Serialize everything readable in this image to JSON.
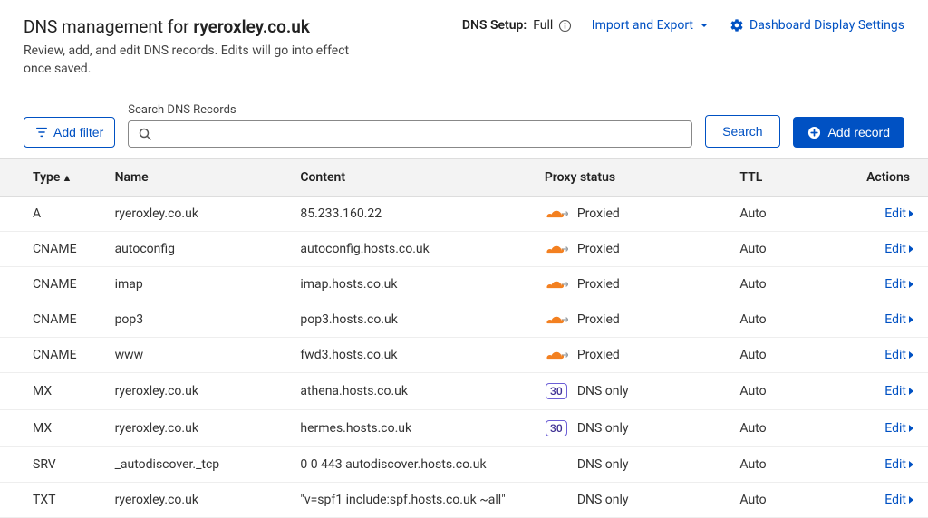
{
  "header": {
    "title_prefix": "DNS management for ",
    "domain": "ryeroxley.co.uk",
    "subtitle": "Review, add, and edit DNS records. Edits will go into effect once saved.",
    "dns_setup_label": "DNS Setup:",
    "dns_setup_value": "Full",
    "import_export": "Import and Export",
    "dashboard_settings": "Dashboard Display Settings"
  },
  "controls": {
    "add_filter": "Add filter",
    "search_label": "Search DNS Records",
    "search_placeholder": "",
    "search_button": "Search",
    "add_record": "Add record"
  },
  "table": {
    "columns": {
      "type": "Type",
      "name": "Name",
      "content": "Content",
      "proxy": "Proxy status",
      "ttl": "TTL",
      "actions": "Actions"
    },
    "edit_label": "Edit",
    "rows": [
      {
        "type": "A",
        "name": "ryeroxley.co.uk",
        "content": "85.233.160.22",
        "proxy": "Proxied",
        "proxy_icon": "cloud",
        "ttl": "Auto"
      },
      {
        "type": "CNAME",
        "name": "autoconfig",
        "content": "autoconfig.hosts.co.uk",
        "proxy": "Proxied",
        "proxy_icon": "cloud",
        "ttl": "Auto"
      },
      {
        "type": "CNAME",
        "name": "imap",
        "content": "imap.hosts.co.uk",
        "proxy": "Proxied",
        "proxy_icon": "cloud",
        "ttl": "Auto"
      },
      {
        "type": "CNAME",
        "name": "pop3",
        "content": "pop3.hosts.co.uk",
        "proxy": "Proxied",
        "proxy_icon": "cloud",
        "ttl": "Auto"
      },
      {
        "type": "CNAME",
        "name": "www",
        "content": "fwd3.hosts.co.uk",
        "proxy": "Proxied",
        "proxy_icon": "cloud",
        "ttl": "Auto"
      },
      {
        "type": "MX",
        "name": "ryeroxley.co.uk",
        "content": "athena.hosts.co.uk",
        "proxy": "DNS only",
        "proxy_icon": "priority",
        "priority": "30",
        "ttl": "Auto"
      },
      {
        "type": "MX",
        "name": "ryeroxley.co.uk",
        "content": "hermes.hosts.co.uk",
        "proxy": "DNS only",
        "proxy_icon": "priority",
        "priority": "30",
        "ttl": "Auto"
      },
      {
        "type": "SRV",
        "name": "_autodiscover._tcp",
        "content": "0 0 443 autodiscover.hosts.co.uk",
        "proxy": "DNS only",
        "proxy_icon": "none",
        "ttl": "Auto"
      },
      {
        "type": "TXT",
        "name": "ryeroxley.co.uk",
        "content": "\"v=spf1 include:spf.hosts.co.uk ~all\"",
        "proxy": "DNS only",
        "proxy_icon": "none",
        "ttl": "Auto"
      }
    ]
  },
  "colors": {
    "link": "#0051c3",
    "cloud": "#f38020",
    "arrow": "#9aa0a6",
    "priority_border": "#6b5ed6"
  }
}
